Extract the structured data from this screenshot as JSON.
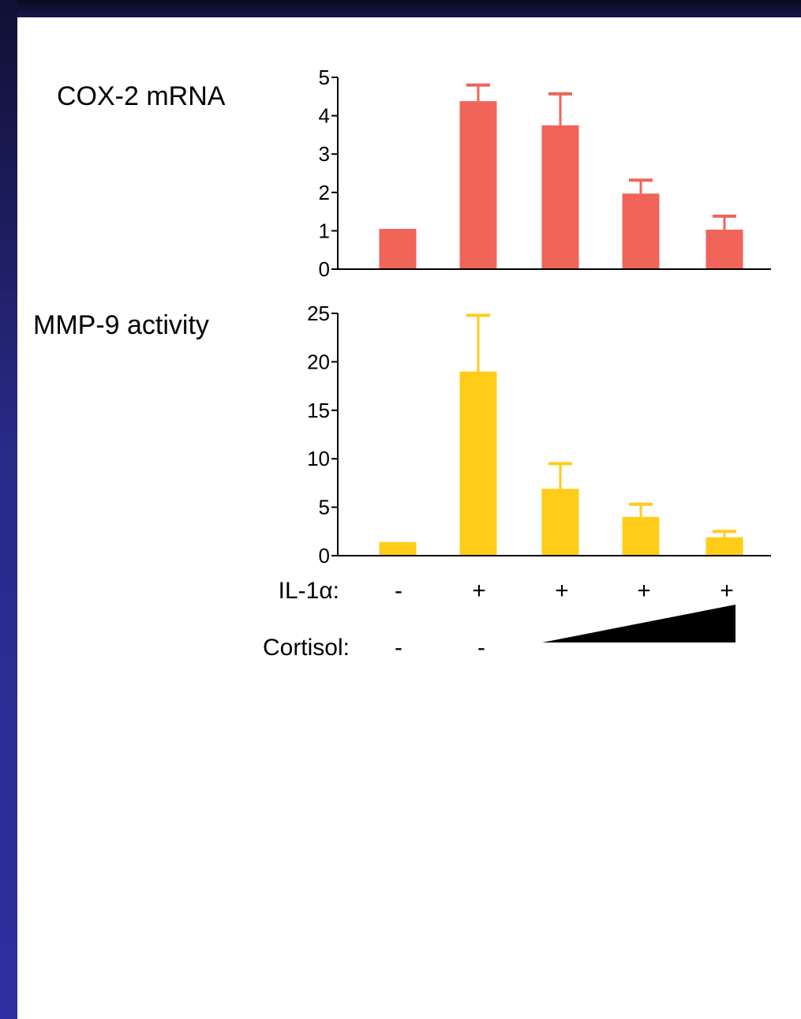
{
  "colors": {
    "cox2": "#f0645a",
    "mmp9": "#ffcc1a",
    "frame": "#2a2a8a"
  },
  "chart_data": [
    {
      "type": "bar",
      "title": "COX-2 mRNA",
      "ylim": [
        0,
        5
      ],
      "yticks": [
        "0",
        "1",
        "2",
        "3",
        "4",
        "5"
      ],
      "series": [
        {
          "values": [
            1.05,
            4.38,
            3.75,
            1.97,
            1.03
          ],
          "errors": [
            0,
            0.42,
            0.82,
            0.35,
            0.35
          ]
        }
      ]
    },
    {
      "type": "bar",
      "title": "MMP-9 activity",
      "ylim": [
        0,
        25
      ],
      "yticks": [
        "0",
        "5",
        "10",
        "15",
        "20",
        "25"
      ],
      "series": [
        {
          "values": [
            1.4,
            19.0,
            6.9,
            4.0,
            1.9
          ],
          "errors": [
            0,
            5.8,
            2.6,
            1.3,
            0.6
          ]
        }
      ]
    }
  ],
  "conditions": {
    "il1a_label": "IL-1α:",
    "il1a_values": [
      "-",
      "+",
      "+",
      "+",
      "+"
    ],
    "cortisol_label": "Cortisol:",
    "cortisol_values": [
      "-",
      "-"
    ]
  }
}
